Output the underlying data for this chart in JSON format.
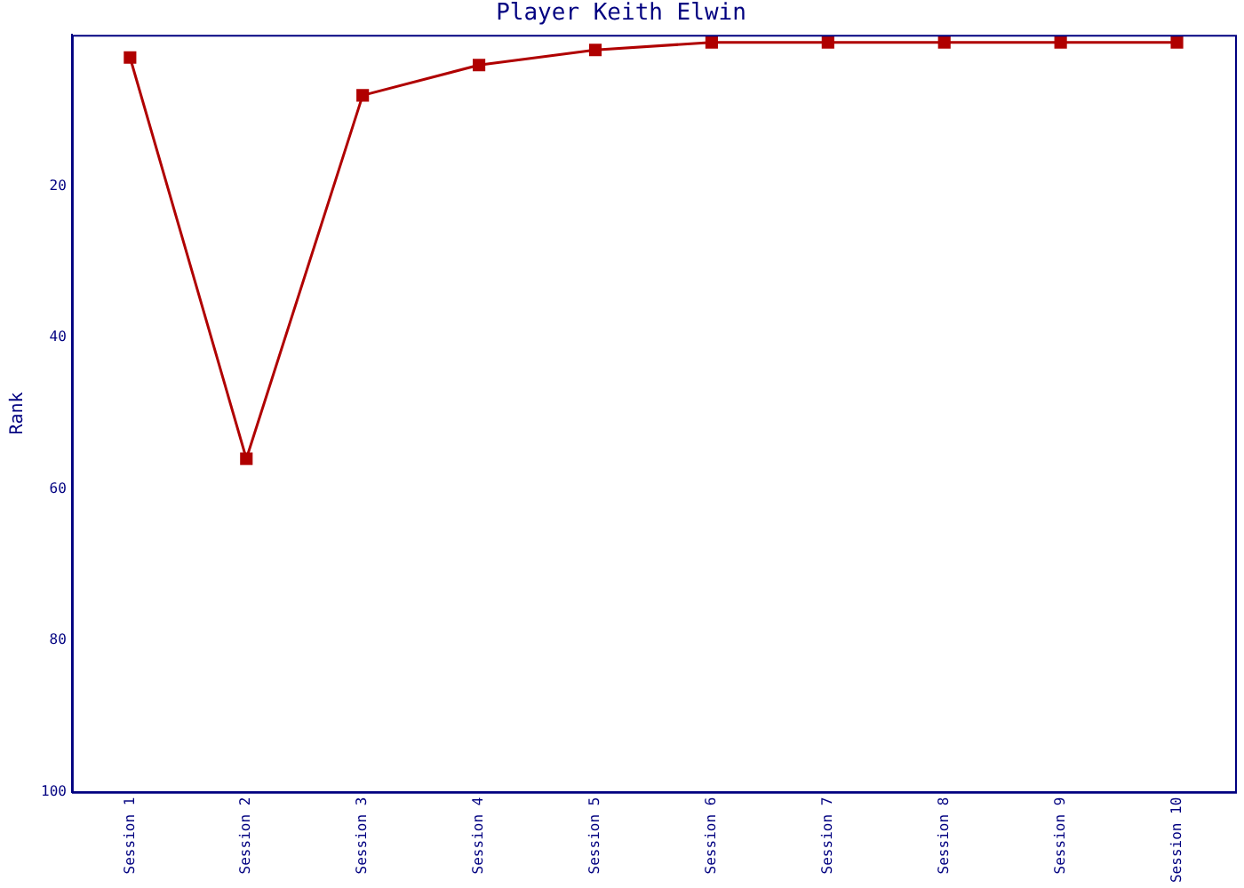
{
  "chart_data": {
    "type": "line",
    "title": "Player Keith Elwin",
    "ylabel": "Rank",
    "categories": [
      "Session 1",
      "Session 2",
      "Session 3",
      "Session 4",
      "Session 5",
      "Session 6",
      "Session 7",
      "Session 8",
      "Session 9",
      "Session 10"
    ],
    "series": [
      {
        "color": "#b00000",
        "values": [
          3,
          56,
          8,
          4,
          2,
          1,
          1,
          1,
          1,
          1
        ]
      }
    ],
    "ylim": [
      100,
      0
    ],
    "yticks": [
      20,
      40,
      60,
      80,
      100
    ],
    "grid": false,
    "legend": false,
    "marker": "square",
    "line_style": "solid"
  }
}
